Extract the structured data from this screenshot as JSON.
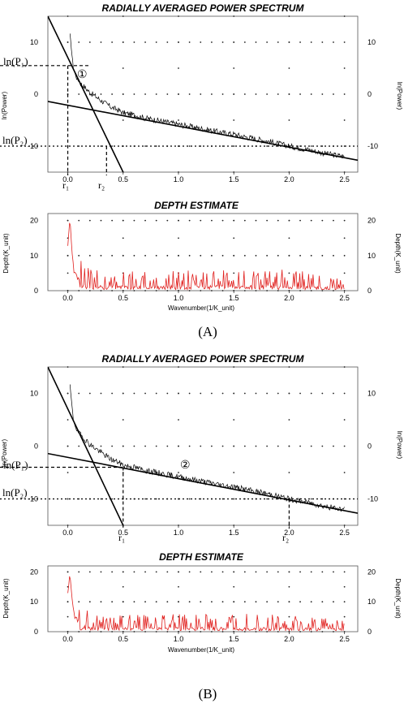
{
  "colors": {
    "spectrum": "#000000",
    "depth": "#e0201e",
    "fit_line": "#000000"
  },
  "panels": [
    {
      "label": "(A)",
      "spectrum": {
        "title": "RADIALLY AVERAGED POWER SPECTRUM",
        "ylabel_left": "ln(Power)",
        "ylabel_right": "ln(Power)",
        "ln_p1_label": "ln(P₁)",
        "ln_p2_label": "ln(P₂)",
        "r1_label": "r₁",
        "r2_label": "r₂",
        "circle_label": "①"
      },
      "depth": {
        "title": "DEPTH ESTIMATE",
        "ylabel_left": "Depth(K_unit)",
        "ylabel_right": "Depth(K_unit)",
        "xlabel": "Wavenumber(1/K_unit)"
      }
    },
    {
      "label": "(B)",
      "spectrum": {
        "title": "RADIALLY AVERAGED POWER SPECTRUM",
        "ylabel_left": "ln(Power)",
        "ylabel_right": "ln(Power)",
        "ln_p1_label": "ln(P₁)",
        "ln_p2_label": "ln(P₂)",
        "r1_label": "r₁",
        "r2_label": "r₂",
        "circle_label": "②"
      },
      "depth": {
        "title": "DEPTH ESTIMATE",
        "ylabel_left": "Depth(K_unit)",
        "ylabel_right": "Depth(K_unit)",
        "xlabel": "Wavenumber(1/K_unit)"
      }
    }
  ],
  "chart_data": [
    {
      "type": "line",
      "title": "RADIALLY AVERAGED POWER SPECTRUM",
      "ylabel": "ln(Power)",
      "xlim": [
        -0.18,
        2.62
      ],
      "ylim": [
        -15,
        15
      ],
      "x_ticks": [
        0.0,
        0.5,
        1.0,
        1.5,
        2.0,
        2.5
      ],
      "x_tick_labels": [
        "0.0",
        "0.5",
        "1.0",
        "1.5",
        "2.0",
        "2.5"
      ],
      "y_ticks": [
        10,
        0,
        -10
      ],
      "y_tick_labels": [
        "10",
        "0",
        "-10"
      ],
      "grid": "dotted",
      "series": [
        {
          "x": [
            0.02,
            0.05,
            0.08,
            0.12,
            0.16,
            0.2,
            0.25,
            0.3,
            0.35,
            0.4,
            0.45,
            0.5,
            0.6,
            0.7,
            0.8,
            0.9,
            1.0,
            1.1,
            1.2,
            1.3,
            1.4,
            1.5,
            1.6,
            1.7,
            1.8,
            1.9,
            2.0,
            2.1,
            2.2,
            2.3,
            2.4,
            2.5
          ],
          "y": [
            11.5,
            5.0,
            3.0,
            2.0,
            1.2,
            0.3,
            -0.4,
            -1.2,
            -1.9,
            -2.6,
            -3.0,
            -3.6,
            -4.0,
            -4.6,
            -5.0,
            -5.4,
            -5.8,
            -6.2,
            -6.6,
            -7.0,
            -7.4,
            -7.7,
            -8.2,
            -8.6,
            -9.0,
            -9.5,
            -10.0,
            -10.4,
            -10.8,
            -11.3,
            -11.7,
            -12.0
          ]
        }
      ],
      "fit_lines": [
        {
          "x": [
            -0.18,
            0.5
          ],
          "y": [
            15,
            -15
          ]
        },
        {
          "x": [
            -0.18,
            2.62
          ],
          "y": [
            -1.4,
            -12.7
          ]
        }
      ],
      "reference_lines": {
        "r1": 0.0,
        "r2": 0.35,
        "ln_p1": 5.5,
        "ln_p2": -10
      }
    },
    {
      "type": "line",
      "title": "DEPTH ESTIMATE",
      "xlabel": "Wavenumber(1/K_unit)",
      "ylabel": "Depth(K_unit)",
      "xlim": [
        -0.18,
        2.62
      ],
      "ylim": [
        0,
        22
      ],
      "x_ticks": [
        0.0,
        0.5,
        1.0,
        1.5,
        2.0,
        2.5
      ],
      "x_tick_labels": [
        "0.0",
        "0.5",
        "1.0",
        "1.5",
        "2.0",
        "2.5"
      ],
      "y_ticks": [
        0,
        10,
        20
      ],
      "y_tick_labels": [
        "0",
        "10",
        "20"
      ],
      "grid": "dotted",
      "series": [
        {
          "x": [
            0.0,
            0.02,
            0.04,
            0.06,
            0.1,
            0.2,
            0.5,
            1.0,
            1.5,
            2.0,
            2.5
          ],
          "y": [
            12,
            20,
            10,
            5,
            3,
            1.5,
            1.5,
            1.5,
            1.5,
            1.5,
            1.0
          ]
        }
      ]
    },
    {
      "type": "line",
      "title": "RADIALLY AVERAGED POWER SPECTRUM",
      "ylabel": "ln(Power)",
      "xlim": [
        -0.18,
        2.62
      ],
      "ylim": [
        -15,
        15
      ],
      "x_ticks": [
        0.0,
        0.5,
        1.0,
        1.5,
        2.0,
        2.5
      ],
      "x_tick_labels": [
        "0.0",
        "0.5",
        "1.0",
        "1.5",
        "2.0",
        "2.5"
      ],
      "y_ticks": [
        10,
        0,
        -10
      ],
      "y_tick_labels": [
        "10",
        "0",
        "-10"
      ],
      "grid": "dotted",
      "series": [
        {
          "x": [
            0.02,
            0.05,
            0.08,
            0.12,
            0.16,
            0.2,
            0.25,
            0.3,
            0.35,
            0.4,
            0.45,
            0.5,
            0.6,
            0.7,
            0.8,
            0.9,
            1.0,
            1.1,
            1.2,
            1.3,
            1.4,
            1.5,
            1.6,
            1.7,
            1.8,
            1.9,
            2.0,
            2.1,
            2.2,
            2.3,
            2.4,
            2.5
          ],
          "y": [
            11.5,
            5.0,
            3.0,
            2.0,
            1.2,
            0.3,
            -0.4,
            -1.2,
            -1.9,
            -2.6,
            -3.0,
            -3.6,
            -4.0,
            -4.6,
            -5.0,
            -5.4,
            -5.8,
            -6.2,
            -6.6,
            -7.0,
            -7.4,
            -7.7,
            -8.2,
            -8.6,
            -9.0,
            -9.5,
            -10.0,
            -10.4,
            -10.8,
            -11.3,
            -11.7,
            -12.0
          ]
        }
      ],
      "fit_lines": [
        {
          "x": [
            -0.18,
            0.5
          ],
          "y": [
            15,
            -15
          ]
        },
        {
          "x": [
            -0.18,
            2.62
          ],
          "y": [
            -1.4,
            -12.7
          ]
        }
      ],
      "reference_lines": {
        "r1": 0.5,
        "r2": 2.0,
        "ln_p1": -4,
        "ln_p2": -10
      }
    },
    {
      "type": "line",
      "title": "DEPTH ESTIMATE",
      "xlabel": "Wavenumber(1/K_unit)",
      "ylabel": "Depth(K_unit)",
      "xlim": [
        -0.18,
        2.62
      ],
      "ylim": [
        0,
        22
      ],
      "x_ticks": [
        0.0,
        0.5,
        1.0,
        1.5,
        2.0,
        2.5
      ],
      "x_tick_labels": [
        "0.0",
        "0.5",
        "1.0",
        "1.5",
        "2.0",
        "2.5"
      ],
      "y_ticks": [
        0,
        10,
        20
      ],
      "y_tick_labels": [
        "0",
        "10",
        "20"
      ],
      "grid": "dotted",
      "series": [
        {
          "x": [
            0.0,
            0.02,
            0.04,
            0.06,
            0.1,
            0.2,
            0.5,
            1.0,
            1.5,
            2.0,
            2.5
          ],
          "y": [
            12,
            20,
            10,
            5,
            3,
            1.5,
            1.5,
            1.5,
            1.5,
            1.5,
            1.0
          ]
        }
      ]
    }
  ]
}
